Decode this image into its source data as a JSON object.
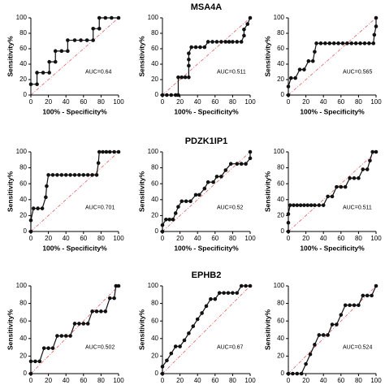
{
  "chart_data": [
    {
      "type": "line",
      "ylabel": "Sensitivity%",
      "xlabel": "100% - Specificity%",
      "annotation": "AUC=0.64",
      "diagonal_color": "#e06060",
      "x": [
        0,
        7,
        7,
        14,
        21,
        21,
        28,
        28,
        35,
        42,
        42,
        50,
        57,
        64,
        71,
        71,
        78,
        78,
        85,
        92,
        100
      ],
      "series": [
        {
          "color": "#111111",
          "values": [
            14,
            14,
            29,
            29,
            29,
            43,
            43,
            57,
            57,
            57,
            71,
            71,
            71,
            71,
            71,
            86,
            86,
            100,
            100,
            100,
            100
          ]
        }
      ],
      "xlim": [
        0,
        100
      ],
      "ylim": [
        0,
        100
      ],
      "xticks": [
        0,
        20,
        40,
        60,
        80,
        100
      ],
      "yticks": [
        0,
        20,
        40,
        60,
        80,
        100
      ]
    },
    {
      "type": "line",
      "title": "MSA4A",
      "ylabel": "Sensitivity%",
      "xlabel": "100% - Specificity%",
      "annotation": "AUC=0.511",
      "diagonal_color": "#e06060",
      "x": [
        0,
        5,
        10,
        15,
        18,
        18,
        22,
        26,
        30,
        30,
        30,
        30,
        33,
        38,
        43,
        48,
        52,
        57,
        62,
        67,
        72,
        76,
        80,
        85,
        90,
        93,
        93,
        97,
        100
      ],
      "series": [
        {
          "color": "#111111",
          "values": [
            0,
            0,
            0,
            0,
            0,
            23,
            23,
            23,
            23,
            38,
            46,
            54,
            62,
            62,
            62,
            62,
            69,
            69,
            69,
            69,
            69,
            69,
            69,
            69,
            69,
            77,
            85,
            92,
            100
          ]
        }
      ],
      "xlim": [
        0,
        100
      ],
      "ylim": [
        0,
        100
      ],
      "xticks": [
        0,
        20,
        40,
        60,
        80,
        100
      ],
      "yticks": [
        0,
        20,
        40,
        60,
        80,
        100
      ]
    },
    {
      "type": "line",
      "ylabel": "Sensitivity%",
      "xlabel": "100% - Specificity%",
      "annotation": "AUC=0.565",
      "diagonal_color": "#e06060",
      "x": [
        0,
        0,
        3,
        8,
        13,
        18,
        23,
        28,
        30,
        32,
        37,
        42,
        47,
        52,
        57,
        62,
        67,
        72,
        77,
        82,
        87,
        92,
        97,
        98,
        100,
        100
      ],
      "series": [
        {
          "color": "#111111",
          "values": [
            0,
            11,
            22,
            22,
            33,
            33,
            44,
            44,
            56,
            67,
            67,
            67,
            67,
            67,
            67,
            67,
            67,
            67,
            67,
            67,
            67,
            67,
            67,
            78,
            89,
            100
          ]
        }
      ],
      "xlim": [
        0,
        100
      ],
      "ylim": [
        0,
        100
      ],
      "xticks": [
        0,
        20,
        40,
        60,
        80,
        100
      ],
      "yticks": [
        0,
        20,
        40,
        60,
        80,
        100
      ]
    },
    {
      "type": "line",
      "ylabel": "Sensitivity%",
      "xlabel": "100% - Specificity%",
      "annotation": "AUC=0.701",
      "diagonal_color": "#e06060",
      "x": [
        0,
        0,
        3,
        8,
        13,
        17,
        18,
        20,
        25,
        30,
        35,
        40,
        45,
        50,
        55,
        60,
        65,
        70,
        75,
        77,
        78,
        82,
        86,
        90,
        95,
        100
      ],
      "series": [
        {
          "color": "#111111",
          "values": [
            0,
            14,
            29,
            29,
            29,
            43,
            57,
            71,
            71,
            71,
            71,
            71,
            71,
            71,
            71,
            71,
            71,
            71,
            71,
            86,
            100,
            100,
            100,
            100,
            100,
            100
          ]
        }
      ],
      "xlim": [
        0,
        100
      ],
      "ylim": [
        0,
        100
      ],
      "xticks": [
        0,
        20,
        40,
        60,
        80,
        100
      ],
      "yticks": [
        0,
        20,
        40,
        60,
        80,
        100
      ]
    },
    {
      "type": "line",
      "title": "PDZK1IP1",
      "ylabel": "Sensitivity%",
      "xlabel": "100% - Specificity%",
      "annotation": "AUC=0.52",
      "diagonal_color": "#e06060",
      "x": [
        0,
        0,
        4,
        8,
        12,
        15,
        18,
        22,
        27,
        32,
        38,
        42,
        48,
        52,
        58,
        62,
        67,
        72,
        78,
        85,
        90,
        95,
        100,
        100
      ],
      "series": [
        {
          "color": "#111111",
          "values": [
            0,
            8,
            15,
            15,
            15,
            23,
            31,
            38,
            38,
            38,
            46,
            46,
            54,
            62,
            62,
            69,
            69,
            77,
            85,
            85,
            85,
            85,
            92,
            100
          ]
        }
      ],
      "xlim": [
        0,
        100
      ],
      "ylim": [
        0,
        100
      ],
      "xticks": [
        0,
        20,
        40,
        60,
        80,
        100
      ],
      "yticks": [
        0,
        20,
        40,
        60,
        80,
        100
      ]
    },
    {
      "type": "line",
      "ylabel": "Sensitivity%",
      "xlabel": "100% - Specificity%",
      "annotation": "AUC=0.511",
      "diagonal_color": "#e06060",
      "x": [
        0,
        0,
        0,
        2,
        6,
        10,
        14,
        18,
        22,
        26,
        30,
        35,
        40,
        45,
        50,
        55,
        60,
        65,
        70,
        75,
        80,
        85,
        90,
        93,
        96,
        100
      ],
      "series": [
        {
          "color": "#111111",
          "values": [
            0,
            11,
            22,
            33,
            33,
            33,
            33,
            33,
            33,
            33,
            33,
            33,
            33,
            44,
            44,
            56,
            56,
            56,
            67,
            67,
            67,
            78,
            78,
            89,
            100,
            100
          ]
        }
      ],
      "xlim": [
        0,
        100
      ],
      "ylim": [
        0,
        100
      ],
      "xticks": [
        0,
        20,
        40,
        60,
        80,
        100
      ],
      "yticks": [
        0,
        20,
        40,
        60,
        80,
        100
      ]
    },
    {
      "type": "line",
      "ylabel": "Sensitivity%",
      "annotation": "AUC=0.502",
      "diagonal_color": "#e06060",
      "x": [
        0,
        0,
        5,
        10,
        15,
        20,
        25,
        30,
        35,
        40,
        45,
        50,
        55,
        60,
        65,
        70,
        75,
        80,
        85,
        90,
        95,
        97,
        100
      ],
      "series": [
        {
          "color": "#111111",
          "values": [
            0,
            14,
            14,
            14,
            29,
            29,
            29,
            43,
            43,
            43,
            43,
            57,
            57,
            57,
            57,
            71,
            71,
            71,
            71,
            86,
            86,
            100,
            100
          ]
        }
      ],
      "xlim": [
        0,
        100
      ],
      "ylim": [
        0,
        100
      ],
      "xticks": [
        0,
        20,
        40,
        60,
        80,
        100
      ],
      "yticks": [
        0,
        20,
        40,
        60,
        80,
        100
      ]
    },
    {
      "type": "line",
      "title": "EPHB2",
      "ylabel": "Sensitivity%",
      "annotation": "AUC=0.67",
      "diagonal_color": "#e06060",
      "x": [
        0,
        0,
        5,
        10,
        15,
        20,
        25,
        30,
        35,
        40,
        45,
        50,
        55,
        60,
        65,
        70,
        75,
        80,
        85,
        90,
        95,
        100
      ],
      "series": [
        {
          "color": "#111111",
          "values": [
            0,
            8,
            15,
            23,
            31,
            31,
            38,
            46,
            54,
            62,
            69,
            77,
            85,
            85,
            92,
            92,
            92,
            92,
            92,
            100,
            100,
            100
          ]
        }
      ],
      "xlim": [
        0,
        100
      ],
      "ylim": [
        0,
        100
      ],
      "xticks": [
        0,
        20,
        40,
        60,
        80,
        100
      ],
      "yticks": [
        0,
        20,
        40,
        60,
        80,
        100
      ]
    },
    {
      "type": "line",
      "ylabel": "Sensitivity%",
      "annotation": "AUC=0.524",
      "diagonal_color": "#e06060",
      "x": [
        0,
        5,
        10,
        15,
        20,
        25,
        30,
        35,
        40,
        45,
        50,
        55,
        60,
        65,
        70,
        75,
        80,
        85,
        90,
        95,
        100
      ],
      "series": [
        {
          "color": "#111111",
          "values": [
            0,
            0,
            0,
            0,
            11,
            22,
            33,
            44,
            44,
            44,
            56,
            56,
            67,
            78,
            78,
            78,
            78,
            89,
            89,
            89,
            100
          ]
        }
      ],
      "xlim": [
        0,
        100
      ],
      "ylim": [
        0,
        100
      ],
      "xticks": [
        0,
        20,
        40,
        60,
        80,
        100
      ],
      "yticks": [
        0,
        20,
        40,
        60,
        80,
        100
      ]
    }
  ]
}
